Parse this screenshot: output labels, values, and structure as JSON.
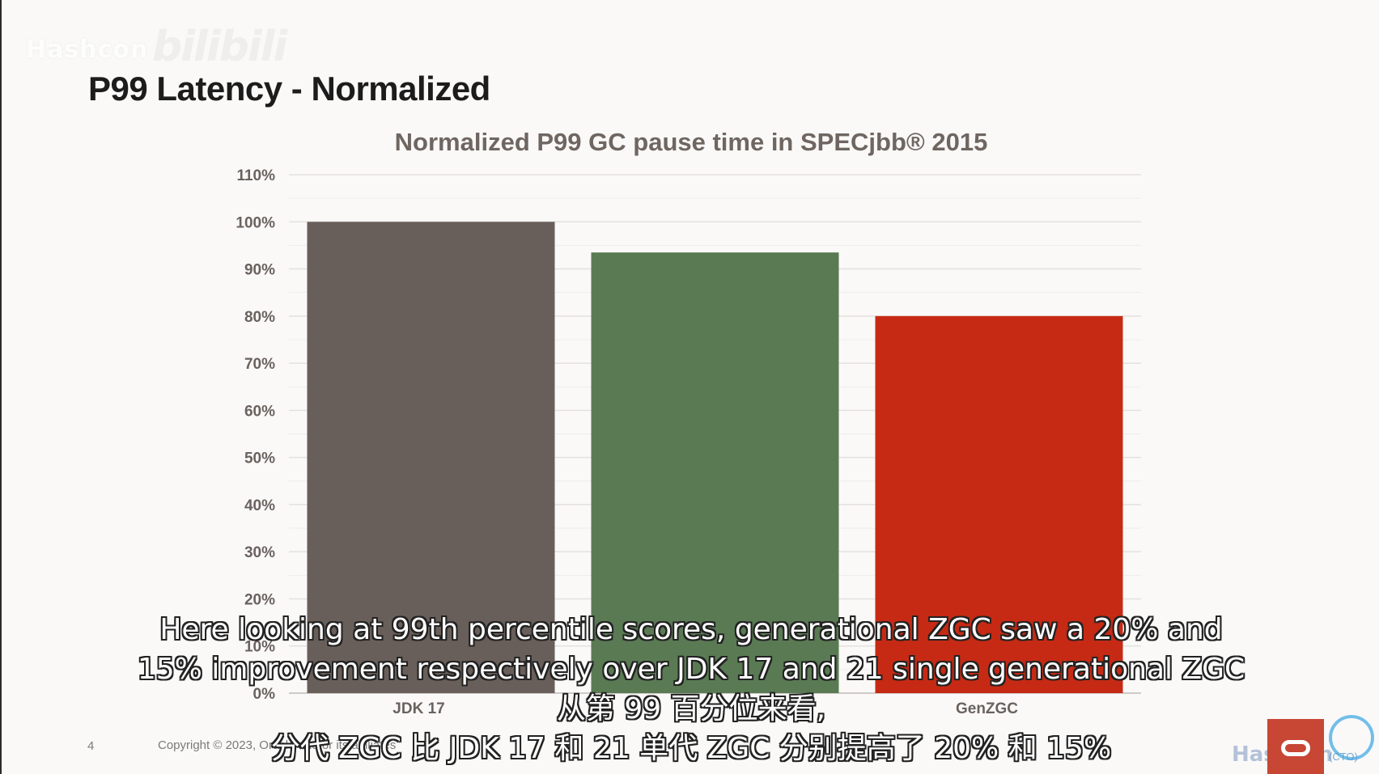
{
  "slide": {
    "title": "P99 Latency - Normalized",
    "watermark": "Hashcon",
    "watermark_bili": "bilibili",
    "page_number": "4",
    "copyright": "Copyright © 2023, Oracle and/or its affiliates"
  },
  "subtitles": {
    "en_line_1": "Here looking at 99th percentile scores, generational ZGC saw a 20% and",
    "en_line_2": "15% improvement respectively over JDK 17 and 21 single generational ZGC",
    "cn_line_1": "从第 99 百分位来看,",
    "cn_line_2": "分代 ZGC 比 JDK 17 和 21 单代 ZGC 分别提高了 20% 和 15%"
  },
  "logos": {
    "corner_text": "Hashcon",
    "corner_sub": "(CTO)",
    "icon": "oracle-logo-icon"
  },
  "chart_data": {
    "type": "bar",
    "title": "Normalized P99 GC pause time in SPECjbb® 2015",
    "xlabel": "",
    "ylabel": "",
    "ylim": [
      0,
      110
    ],
    "yticks": [
      0,
      10,
      20,
      30,
      40,
      50,
      60,
      70,
      80,
      90,
      100,
      110
    ],
    "ytick_labels": [
      "0%",
      "10%",
      "20%",
      "30%",
      "40%",
      "50%",
      "60%",
      "70%",
      "80%",
      "90%",
      "100%",
      "110%"
    ],
    "grid": true,
    "legend": "none",
    "categories": [
      "JDK 17",
      "",
      "GenZGC"
    ],
    "values": [
      100,
      93.5,
      80
    ],
    "colors": [
      "#695f5a",
      "#5a7a54",
      "#c62a14"
    ]
  }
}
